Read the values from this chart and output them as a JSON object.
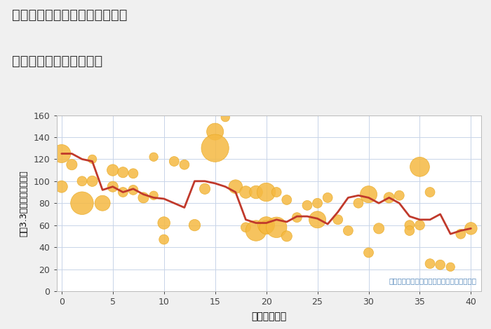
{
  "title_line1": "大阪府大阪市東淀川区東中島の",
  "title_line2": "築年数別中古戸建て価格",
  "xlabel": "築年数（年）",
  "ylabel": "坪（3.3㎡）単価（万円）",
  "annotation": "円の大きさは、取引のあった物件面積を示す",
  "bg_color": "#f0f0f0",
  "plot_bg_color": "#ffffff",
  "grid_color": "#c8d4e8",
  "line_color": "#c0392b",
  "scatter_color": "#f5b942",
  "scatter_edge_color": "#e8a820",
  "xlim": [
    -0.5,
    41
  ],
  "ylim": [
    0,
    160
  ],
  "xticks": [
    0,
    5,
    10,
    15,
    20,
    25,
    30,
    35,
    40
  ],
  "yticks": [
    0,
    20,
    40,
    60,
    80,
    100,
    120,
    140,
    160
  ],
  "line_x": [
    0,
    1,
    2,
    3,
    4,
    5,
    6,
    7,
    8,
    9,
    10,
    11,
    12,
    13,
    14,
    15,
    16,
    17,
    18,
    19,
    20,
    21,
    22,
    23,
    24,
    25,
    26,
    27,
    28,
    29,
    30,
    31,
    32,
    33,
    34,
    35,
    36,
    37,
    38,
    39,
    40
  ],
  "line_y": [
    125,
    125,
    120,
    118,
    92,
    95,
    90,
    93,
    88,
    85,
    84,
    80,
    76,
    100,
    100,
    98,
    95,
    90,
    65,
    62,
    62,
    65,
    63,
    68,
    68,
    66,
    61,
    72,
    85,
    87,
    85,
    80,
    85,
    80,
    68,
    65,
    65,
    70,
    52,
    55,
    57
  ],
  "scatter_x": [
    0,
    0,
    1,
    2,
    2,
    3,
    3,
    4,
    5,
    5,
    6,
    6,
    7,
    7,
    8,
    9,
    9,
    10,
    10,
    11,
    12,
    13,
    14,
    15,
    15,
    16,
    17,
    18,
    18,
    19,
    19,
    20,
    20,
    20,
    21,
    21,
    22,
    22,
    23,
    24,
    25,
    25,
    26,
    27,
    28,
    29,
    30,
    30,
    31,
    32,
    33,
    34,
    34,
    35,
    35,
    36,
    36,
    37,
    38,
    39,
    40
  ],
  "scatter_y": [
    125,
    95,
    115,
    100,
    80,
    120,
    100,
    80,
    110,
    95,
    108,
    90,
    107,
    92,
    85,
    122,
    87,
    47,
    62,
    118,
    115,
    60,
    93,
    145,
    130,
    158,
    95,
    90,
    58,
    90,
    55,
    90,
    60,
    58,
    90,
    58,
    83,
    50,
    67,
    78,
    65,
    80,
    85,
    65,
    55,
    80,
    88,
    35,
    57,
    85,
    87,
    60,
    55,
    113,
    60,
    90,
    25,
    24,
    22,
    52,
    57
  ],
  "scatter_size": [
    350,
    150,
    120,
    100,
    550,
    80,
    120,
    250,
    140,
    120,
    120,
    100,
    100,
    100,
    120,
    80,
    80,
    100,
    160,
    100,
    100,
    140,
    120,
    300,
    800,
    80,
    200,
    160,
    100,
    180,
    450,
    360,
    300,
    200,
    100,
    450,
    100,
    120,
    100,
    100,
    300,
    100,
    100,
    100,
    100,
    100,
    300,
    100,
    120,
    120,
    100,
    100,
    100,
    400,
    100,
    100,
    100,
    100,
    80,
    100,
    160
  ]
}
